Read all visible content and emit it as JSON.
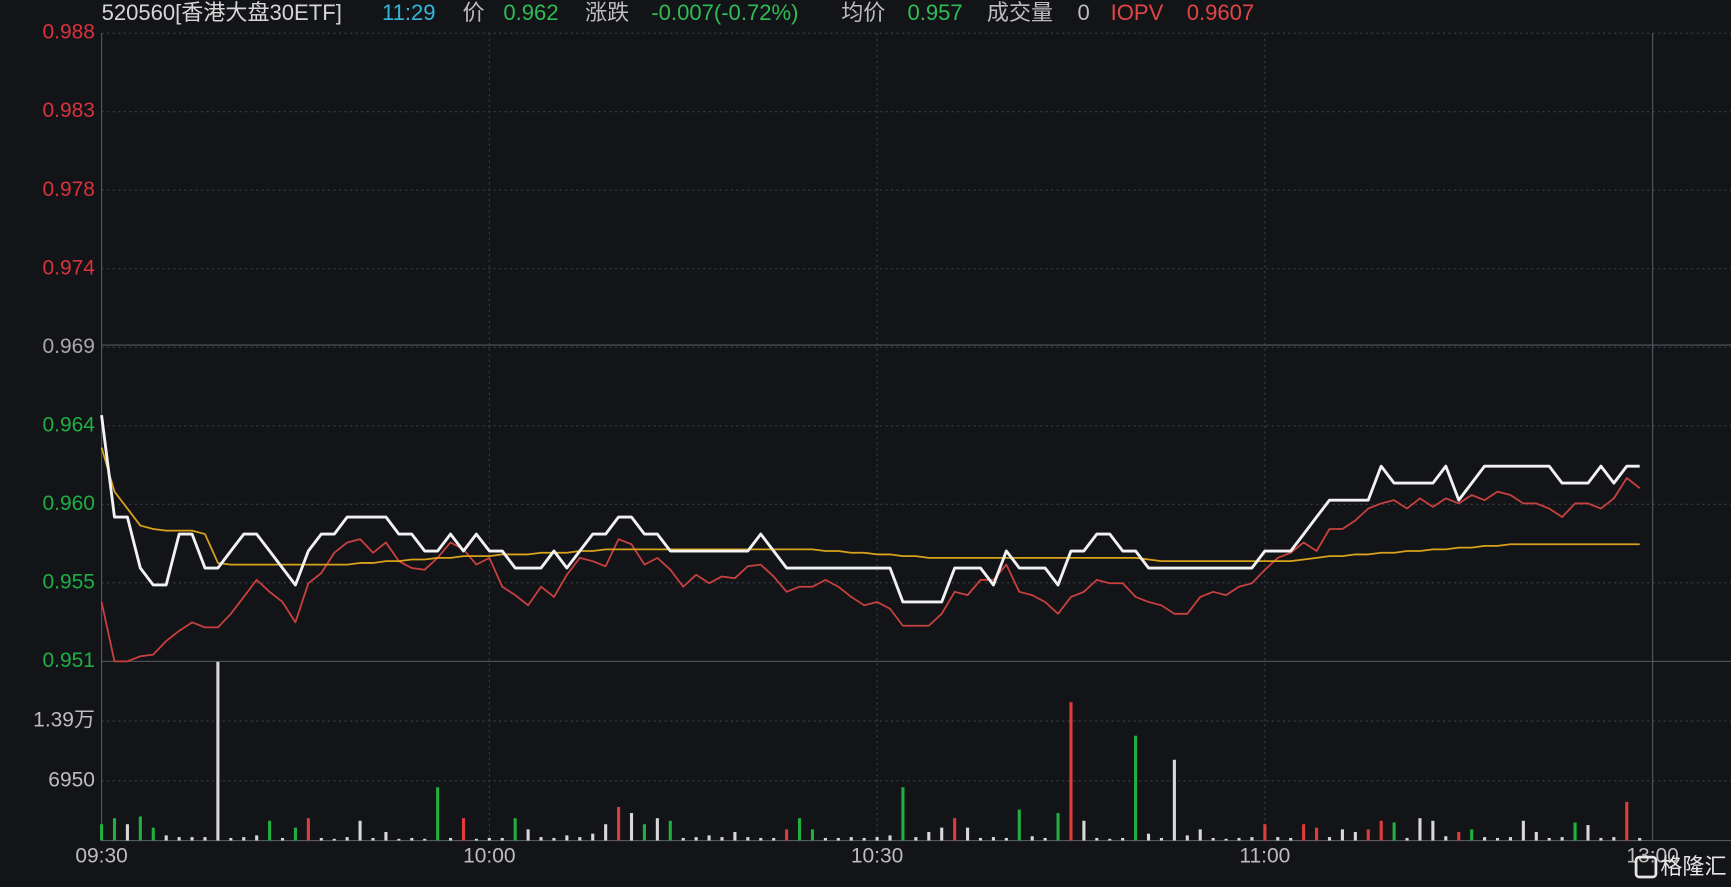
{
  "chart_data": {
    "type": "line",
    "header": {
      "code": "520560[香港大盘30ETF]",
      "time": "11:29",
      "price_label": "价",
      "price": "0.962",
      "change_label": "涨跌",
      "change": "-0.007(-0.72%)",
      "avg_label": "均价",
      "avg": "0.957",
      "volume_label": "成交量",
      "volume": "0",
      "iopv_label": "IOPV",
      "iopv": "0.9607"
    },
    "watermark": "格隆汇",
    "x": [
      "09:30",
      "09:31",
      "09:32",
      "09:33",
      "09:34",
      "09:35",
      "09:36",
      "09:37",
      "09:38",
      "09:39",
      "09:40",
      "09:41",
      "09:42",
      "09:43",
      "09:44",
      "09:45",
      "09:46",
      "09:47",
      "09:48",
      "09:49",
      "09:50",
      "09:51",
      "09:52",
      "09:53",
      "09:54",
      "09:55",
      "09:56",
      "09:57",
      "09:58",
      "09:59",
      "10:00",
      "10:01",
      "10:02",
      "10:03",
      "10:04",
      "10:05",
      "10:06",
      "10:07",
      "10:08",
      "10:09",
      "10:10",
      "10:11",
      "10:12",
      "10:13",
      "10:14",
      "10:15",
      "10:16",
      "10:17",
      "10:18",
      "10:19",
      "10:20",
      "10:21",
      "10:22",
      "10:23",
      "10:24",
      "10:25",
      "10:26",
      "10:27",
      "10:28",
      "10:29",
      "10:30",
      "10:31",
      "10:32",
      "10:33",
      "10:34",
      "10:35",
      "10:36",
      "10:37",
      "10:38",
      "10:39",
      "10:40",
      "10:41",
      "10:42",
      "10:43",
      "10:44",
      "10:45",
      "10:46",
      "10:47",
      "10:48",
      "10:49",
      "10:50",
      "10:51",
      "10:52",
      "10:53",
      "10:54",
      "10:55",
      "10:56",
      "10:57",
      "10:58",
      "10:59",
      "11:00",
      "11:01",
      "11:02",
      "11:03",
      "11:04",
      "11:05",
      "11:06",
      "11:07",
      "11:08",
      "11:09",
      "11:10",
      "11:11",
      "11:12",
      "11:13",
      "11:14",
      "11:15",
      "11:16",
      "11:17",
      "11:18",
      "11:19",
      "11:20",
      "11:21",
      "11:22",
      "11:23",
      "11:24",
      "11:25",
      "11:26",
      "11:27",
      "11:28",
      "11:29"
    ],
    "xlim": [
      "09:30",
      "11:30"
    ],
    "xticks": [
      "09:30",
      "10:00",
      "10:30",
      "11:00",
      {
        "value": "11:30",
        "label": "13:00"
      }
    ],
    "ylim": [
      0.9505,
      0.9875
    ],
    "yticks": [
      {
        "value": 0.9505,
        "label": "0.951"
      },
      {
        "value": 0.955125,
        "label": "0.955"
      },
      {
        "value": 0.95975,
        "label": "0.960"
      },
      {
        "value": 0.964375,
        "label": "0.964"
      },
      {
        "value": 0.969,
        "label": "0.969"
      },
      {
        "value": 0.973625,
        "label": "0.974"
      },
      {
        "value": 0.97825,
        "label": "0.978"
      },
      {
        "value": 0.982875,
        "label": "0.983"
      },
      {
        "value": 0.9875,
        "label": "0.988"
      }
    ],
    "ytick_colors": [
      "#1fae43",
      "#1fae43",
      "#1fae43",
      "#1fae43",
      "#a8a8a8",
      "#d8323c",
      "#d8323c",
      "#d8323c",
      "#d8323c"
    ],
    "grid": true,
    "series": [
      {
        "color": "#c9413f",
        "values": [
          0.954,
          0.9505,
          0.9505,
          0.9508,
          0.9509,
          0.9517,
          0.9523,
          0.9528,
          0.9525,
          0.9525,
          0.9533,
          0.9543,
          0.9553,
          0.9546,
          0.954,
          0.9528,
          0.9551,
          0.9557,
          0.9569,
          0.9575,
          0.9577,
          0.9569,
          0.9575,
          0.9564,
          0.956,
          0.9559,
          0.9566,
          0.9575,
          0.9571,
          0.9562,
          0.9566,
          0.9549,
          0.9544,
          0.9538,
          0.9549,
          0.9543,
          0.9556,
          0.9566,
          0.9564,
          0.9561,
          0.9577,
          0.9574,
          0.9562,
          0.9566,
          0.9559,
          0.9549,
          0.9556,
          0.9551,
          0.9555,
          0.9554,
          0.9561,
          0.9562,
          0.9555,
          0.9546,
          0.9549,
          0.9549,
          0.9553,
          0.9549,
          0.9543,
          0.9538,
          0.954,
          0.9536,
          0.9526,
          0.9526,
          0.9526,
          0.9533,
          0.9546,
          0.9544,
          0.9553,
          0.9553,
          0.9562,
          0.9546,
          0.9544,
          0.954,
          0.9533,
          0.9543,
          0.9546,
          0.9553,
          0.9551,
          0.9551,
          0.9543,
          0.954,
          0.9538,
          0.9533,
          0.9533,
          0.9543,
          0.9546,
          0.9544,
          0.9549,
          0.9551,
          0.9559,
          0.9566,
          0.9569,
          0.9575,
          0.957,
          0.9583,
          0.9583,
          0.9588,
          0.9595,
          0.9598,
          0.96,
          0.9595,
          0.9601,
          0.9596,
          0.9601,
          0.9598,
          0.9603,
          0.96,
          0.9605,
          0.9603,
          0.9598,
          0.9598,
          0.9595,
          0.959,
          0.9598,
          0.9598,
          0.9595,
          0.9601,
          0.9613,
          0.9607
        ]
      },
      {
        "color": "#d9a21b",
        "values": [
          0.9631,
          0.9605,
          0.9595,
          0.9585,
          0.9583,
          0.9582,
          0.9582,
          0.9582,
          0.958,
          0.9563,
          0.9562,
          0.9562,
          0.9562,
          0.9562,
          0.9562,
          0.9562,
          0.9562,
          0.9562,
          0.9562,
          0.9562,
          0.9563,
          0.9563,
          0.9564,
          0.9564,
          0.9565,
          0.9565,
          0.9566,
          0.9566,
          0.9567,
          0.9567,
          0.9567,
          0.9568,
          0.9568,
          0.9568,
          0.9569,
          0.9569,
          0.9569,
          0.957,
          0.957,
          0.9571,
          0.9571,
          0.9571,
          0.9571,
          0.9571,
          0.9571,
          0.9571,
          0.9571,
          0.9571,
          0.9571,
          0.9571,
          0.9571,
          0.9571,
          0.9571,
          0.9571,
          0.9571,
          0.9571,
          0.957,
          0.957,
          0.9569,
          0.9569,
          0.9568,
          0.9568,
          0.9567,
          0.9567,
          0.9566,
          0.9566,
          0.9566,
          0.9566,
          0.9566,
          0.9566,
          0.9566,
          0.9566,
          0.9566,
          0.9566,
          0.9566,
          0.9566,
          0.9566,
          0.9566,
          0.9566,
          0.9566,
          0.9566,
          0.9565,
          0.9564,
          0.9564,
          0.9564,
          0.9564,
          0.9564,
          0.9564,
          0.9564,
          0.9564,
          0.9564,
          0.9564,
          0.9564,
          0.9565,
          0.9566,
          0.9567,
          0.9567,
          0.9568,
          0.9568,
          0.9569,
          0.9569,
          0.957,
          0.957,
          0.9571,
          0.9571,
          0.9572,
          0.9572,
          0.9573,
          0.9573,
          0.9574,
          0.9574,
          0.9574,
          0.9574,
          0.9574,
          0.9574,
          0.9574,
          0.9574,
          0.9574,
          0.9574,
          0.9574
        ]
      },
      {
        "color": "#f2f2f2",
        "values": [
          0.965,
          0.959,
          0.959,
          0.956,
          0.955,
          0.955,
          0.958,
          0.958,
          0.956,
          0.956,
          0.957,
          0.958,
          0.958,
          0.957,
          0.956,
          0.955,
          0.957,
          0.958,
          0.958,
          0.959,
          0.959,
          0.959,
          0.959,
          0.958,
          0.958,
          0.957,
          0.957,
          0.958,
          0.957,
          0.958,
          0.957,
          0.957,
          0.956,
          0.956,
          0.956,
          0.957,
          0.956,
          0.957,
          0.958,
          0.958,
          0.959,
          0.959,
          0.958,
          0.958,
          0.957,
          0.957,
          0.957,
          0.957,
          0.957,
          0.957,
          0.957,
          0.958,
          0.957,
          0.956,
          0.956,
          0.956,
          0.956,
          0.956,
          0.956,
          0.956,
          0.956,
          0.956,
          0.954,
          0.954,
          0.954,
          0.954,
          0.956,
          0.956,
          0.956,
          0.955,
          0.957,
          0.956,
          0.956,
          0.956,
          0.955,
          0.957,
          0.957,
          0.958,
          0.958,
          0.957,
          0.957,
          0.956,
          0.956,
          0.956,
          0.956,
          0.956,
          0.956,
          0.956,
          0.956,
          0.956,
          0.957,
          0.957,
          0.957,
          0.958,
          0.959,
          0.96,
          0.96,
          0.96,
          0.96,
          0.962,
          0.961,
          0.961,
          0.961,
          0.961,
          0.962,
          0.96,
          0.961,
          0.962,
          0.962,
          0.962,
          0.962,
          0.962,
          0.962,
          0.961,
          0.961,
          0.961,
          0.962,
          0.961,
          0.962,
          0.962
        ]
      }
    ],
    "volume": {
      "ylim": [
        0,
        20850
      ],
      "yticks": [
        6950,
        {
          "value": 13900,
          "label": "1.39万"
        }
      ],
      "values": [
        1900,
        2600,
        1900,
        2800,
        1500,
        600,
        400,
        400,
        400,
        20800,
        300,
        400,
        600,
        2300,
        300,
        1500,
        2600,
        300,
        200,
        400,
        2300,
        300,
        1000,
        200,
        300,
        200,
        6200,
        300,
        2600,
        200,
        300,
        300,
        2600,
        1300,
        400,
        300,
        600,
        400,
        800,
        1900,
        3900,
        3200,
        1900,
        2600,
        2300,
        300,
        400,
        600,
        400,
        1000,
        400,
        300,
        300,
        1300,
        2600,
        1300,
        300,
        300,
        400,
        300,
        400,
        600,
        6200,
        400,
        1000,
        1500,
        2600,
        1500,
        300,
        400,
        300,
        3600,
        500,
        300,
        3200,
        16100,
        2300,
        300,
        200,
        300,
        12200,
        800,
        300,
        9400,
        600,
        1300,
        300,
        200,
        300,
        400,
        1900,
        400,
        300,
        1900,
        1500,
        400,
        1300,
        1000,
        1300,
        2300,
        2100,
        300,
        2600,
        2300,
        500,
        1000,
        1300,
        400,
        300,
        400,
        2300,
        1000,
        300,
        400,
        2100,
        1800,
        300,
        400,
        4500,
        300
      ],
      "colors": [
        "#20b040",
        "#20b040",
        "#d8d8d8",
        "#20b040",
        "#20b040",
        "#d8d8d8",
        "#d8d8d8",
        "#d8d8d8",
        "#d8d8d8",
        "#d8d8d8",
        "#d8d8d8",
        "#d8d8d8",
        "#d8d8d8",
        "#20b040",
        "#d8d8d8",
        "#20b040",
        "#e03c3c",
        "#d8d8d8",
        "#d8d8d8",
        "#d8d8d8",
        "#d8d8d8",
        "#d8d8d8",
        "#d8d8d8",
        "#d8d8d8",
        "#d8d8d8",
        "#d8d8d8",
        "#20b040",
        "#d8d8d8",
        "#e03c3c",
        "#d8d8d8",
        "#d8d8d8",
        "#d8d8d8",
        "#20b040",
        "#d8d8d8",
        "#d8d8d8",
        "#d8d8d8",
        "#d8d8d8",
        "#d8d8d8",
        "#d8d8d8",
        "#d8d8d8",
        "#e03c3c",
        "#d8d8d8",
        "#20b040",
        "#d8d8d8",
        "#20b040",
        "#d8d8d8",
        "#d8d8d8",
        "#d8d8d8",
        "#d8d8d8",
        "#d8d8d8",
        "#d8d8d8",
        "#d8d8d8",
        "#d8d8d8",
        "#e03c3c",
        "#20b040",
        "#20b040",
        "#d8d8d8",
        "#d8d8d8",
        "#d8d8d8",
        "#d8d8d8",
        "#d8d8d8",
        "#d8d8d8",
        "#20b040",
        "#d8d8d8",
        "#d8d8d8",
        "#d8d8d8",
        "#e03c3c",
        "#d8d8d8",
        "#d8d8d8",
        "#d8d8d8",
        "#d8d8d8",
        "#20b040",
        "#d8d8d8",
        "#d8d8d8",
        "#20b040",
        "#e03c3c",
        "#d8d8d8",
        "#d8d8d8",
        "#d8d8d8",
        "#d8d8d8",
        "#20b040",
        "#d8d8d8",
        "#d8d8d8",
        "#d8d8d8",
        "#d8d8d8",
        "#d8d8d8",
        "#d8d8d8",
        "#d8d8d8",
        "#d8d8d8",
        "#d8d8d8",
        "#e03c3c",
        "#d8d8d8",
        "#d8d8d8",
        "#e03c3c",
        "#e03c3c",
        "#d8d8d8",
        "#d8d8d8",
        "#d8d8d8",
        "#e03c3c",
        "#e03c3c",
        "#20b040",
        "#d8d8d8",
        "#d8d8d8",
        "#d8d8d8",
        "#d8d8d8",
        "#e03c3c",
        "#20b040",
        "#d8d8d8",
        "#d8d8d8",
        "#d8d8d8",
        "#d8d8d8",
        "#d8d8d8",
        "#d8d8d8",
        "#d8d8d8",
        "#20b040",
        "#d8d8d8",
        "#d8d8d8",
        "#d8d8d8",
        "#e03c3c",
        "#d8d8d8"
      ]
    }
  }
}
